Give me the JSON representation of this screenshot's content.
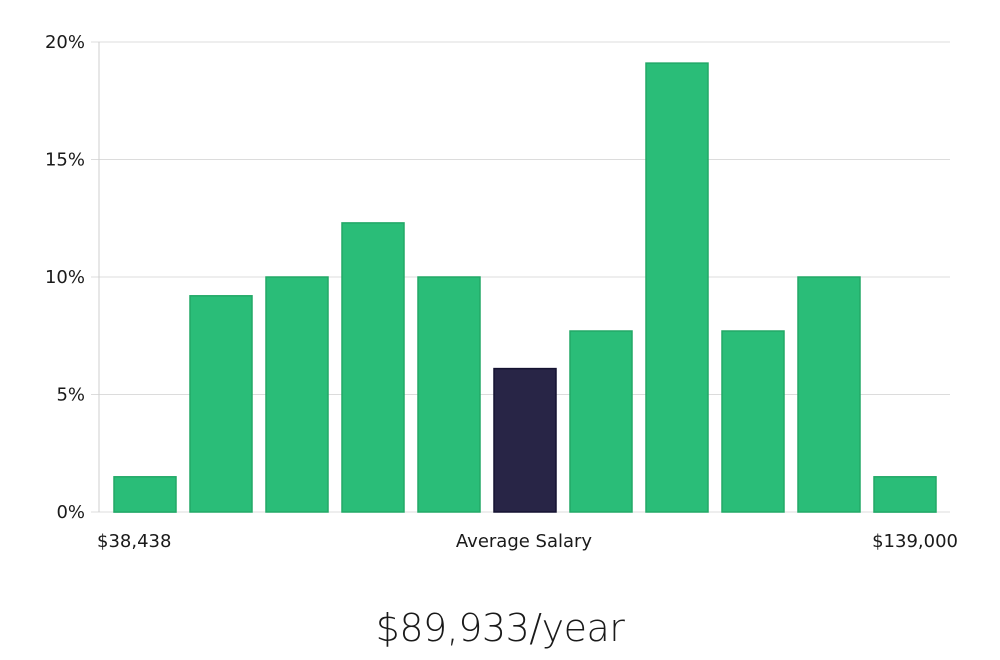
{
  "chart_data": {
    "type": "bar",
    "values": [
      1.5,
      9.2,
      10.0,
      12.3,
      10.0,
      6.1,
      7.7,
      19.1,
      7.7,
      10.0,
      1.5
    ],
    "highlight_index": 5,
    "ylim": [
      0,
      20
    ],
    "y_ticks": [
      0,
      5,
      10,
      15,
      20
    ],
    "y_tick_labels": [
      "0%",
      "5%",
      "10%",
      "15%",
      "20%"
    ],
    "x_labels": {
      "min": "$38,438",
      "center": "Average Salary",
      "max": "$139,000"
    },
    "colors": {
      "bar": "#2abd78",
      "bar_stroke": "#22a867",
      "highlight": "#282546",
      "highlight_stroke": "#141230"
    },
    "grid": true
  },
  "summary": {
    "average_salary": "$89,933/year"
  }
}
